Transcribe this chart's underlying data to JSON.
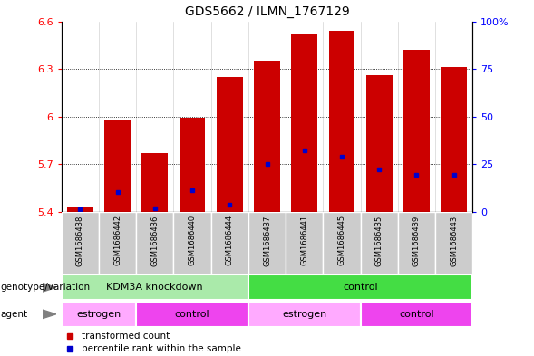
{
  "title": "GDS5662 / ILMN_1767129",
  "samples": [
    "GSM1686438",
    "GSM1686442",
    "GSM1686436",
    "GSM1686440",
    "GSM1686444",
    "GSM1686437",
    "GSM1686441",
    "GSM1686445",
    "GSM1686435",
    "GSM1686439",
    "GSM1686443"
  ],
  "bar_values": [
    5.43,
    5.98,
    5.77,
    5.99,
    6.25,
    6.35,
    6.52,
    6.54,
    6.26,
    6.42,
    6.31
  ],
  "blue_dot_values": [
    5.415,
    5.525,
    5.42,
    5.535,
    5.445,
    5.7,
    5.785,
    5.745,
    5.665,
    5.635,
    5.635
  ],
  "ylim_left": [
    5.4,
    6.6
  ],
  "ylim_right": [
    0,
    100
  ],
  "yticks_left": [
    5.4,
    5.7,
    6.0,
    6.3,
    6.6
  ],
  "yticks_right": [
    0,
    25,
    50,
    75,
    100
  ],
  "ytick_labels_left": [
    "5.4",
    "5.7",
    "6",
    "6.3",
    "6.6"
  ],
  "ytick_labels_right": [
    "0",
    "25",
    "50",
    "75",
    "100%"
  ],
  "bar_color": "#cc0000",
  "blue_color": "#0000cc",
  "bar_bottom": 5.4,
  "bg_color": "#ffffff",
  "genotype_groups": [
    {
      "label": "KDM3A knockdown",
      "start": 0,
      "end": 5,
      "color": "#aaeaaa"
    },
    {
      "label": "control",
      "start": 5,
      "end": 11,
      "color": "#44dd44"
    }
  ],
  "agent_groups": [
    {
      "label": "estrogen",
      "start": 0,
      "end": 2,
      "color": "#ffaaff"
    },
    {
      "label": "control",
      "start": 2,
      "end": 5,
      "color": "#ee44ee"
    },
    {
      "label": "estrogen",
      "start": 5,
      "end": 8,
      "color": "#ffaaff"
    },
    {
      "label": "control",
      "start": 8,
      "end": 11,
      "color": "#ee44ee"
    }
  ],
  "title_fontsize": 10,
  "tick_fontsize": 8,
  "sample_fontsize": 6,
  "label_fontsize": 8
}
